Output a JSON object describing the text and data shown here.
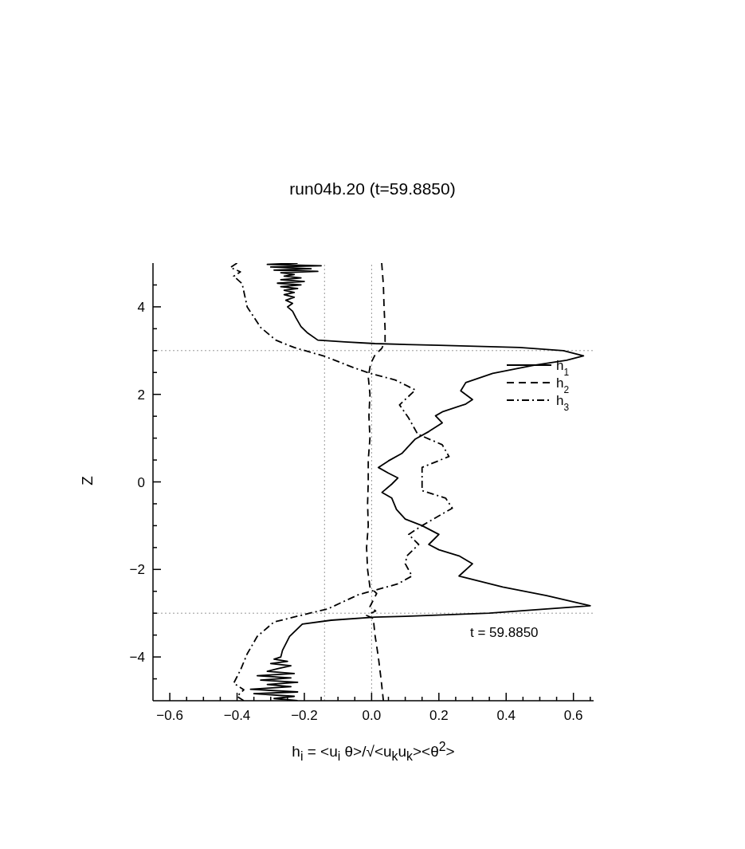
{
  "chart_data": {
    "type": "line",
    "title": "run04b.20 (t=59.8850)",
    "xlabel": "h$_{i}$ = <u$_{i}$ θ>/√<u$_{k}$u$_{k}$><θ$^{2}$>",
    "ylabel": "Z",
    "annotations": [
      "t = 59.8850"
    ],
    "xlim": [
      -0.65,
      0.66
    ],
    "ylim": [
      -5,
      5
    ],
    "xticks": [
      {
        "value": -0.6,
        "label": "−0.6"
      },
      {
        "value": -0.55,
        "label": null
      },
      {
        "value": -0.5,
        "label": null
      },
      {
        "value": -0.45,
        "label": null
      },
      {
        "value": -0.4,
        "label": "−0.4"
      },
      {
        "value": -0.35,
        "label": null
      },
      {
        "value": -0.3,
        "label": null
      },
      {
        "value": -0.25,
        "label": null
      },
      {
        "value": -0.2,
        "label": "−0.2"
      },
      {
        "value": -0.15,
        "label": null
      },
      {
        "value": -0.1,
        "label": null
      },
      {
        "value": -0.05,
        "label": null
      },
      {
        "value": 0,
        "label": "0.0"
      },
      {
        "value": 0.05,
        "label": null
      },
      {
        "value": 0.1,
        "label": null
      },
      {
        "value": 0.15,
        "label": null
      },
      0.2,
      {
        "value": 0.25,
        "label": null
      },
      {
        "value": 0.3,
        "label": null
      },
      {
        "value": 0.35,
        "label": null
      },
      0.4,
      {
        "value": 0.45,
        "label": null
      },
      {
        "value": 0.5,
        "label": null
      },
      {
        "value": 0.55,
        "label": null
      },
      0.6,
      {
        "value": 0.65,
        "label": null
      }
    ],
    "yticks": [
      {
        "value": -4.5,
        "label": null
      },
      {
        "value": -4,
        "label": "−4"
      },
      {
        "value": -3.5,
        "label": null
      },
      {
        "value": -3,
        "label": null
      },
      {
        "value": -2.5,
        "label": null
      },
      {
        "value": -2,
        "label": "−2"
      },
      {
        "value": -1.5,
        "label": null
      },
      {
        "value": -1,
        "label": null
      },
      {
        "value": -0.5,
        "label": null
      },
      0,
      {
        "value": 0.5,
        "label": null
      },
      {
        "value": 1,
        "label": null
      },
      {
        "value": 1.5,
        "label": null
      },
      2,
      {
        "value": 2.5,
        "label": null
      },
      {
        "value": 3,
        "label": null
      },
      {
        "value": 3.5,
        "label": null
      },
      4,
      {
        "value": 4.5,
        "label": null
      }
    ],
    "legend": "top right",
    "marker": "none",
    "ref_lines": [
      {
        "axis": "x",
        "value": 0,
        "color": "#999999",
        "line_style": "dotted"
      },
      {
        "axis": "x",
        "value": -0.14,
        "color": "#999999",
        "line_style": "dotted"
      },
      {
        "axis": "y",
        "value": 3,
        "color": "#999999",
        "line_style": "dotted"
      },
      {
        "axis": "y",
        "value": -3,
        "color": "#999999",
        "line_style": "dotted"
      }
    ],
    "series": [
      {
        "name": "h$_{1}$",
        "color": "#000000",
        "line_style": "solid",
        "x": [
          -0.22,
          -0.31,
          -0.15,
          -0.3,
          -0.18,
          -0.29,
          -0.16,
          -0.27,
          -0.23,
          -0.26,
          -0.21,
          -0.27,
          -0.2,
          -0.28,
          -0.21,
          -0.27,
          -0.22,
          -0.26,
          -0.23,
          -0.26,
          -0.23,
          -0.255,
          -0.235,
          -0.25,
          -0.235,
          -0.225,
          -0.21,
          -0.19,
          -0.16,
          -0.08,
          0.01,
          0.2,
          0.44,
          0.57,
          0.63,
          0.58,
          0.48,
          0.36,
          0.28,
          0.265,
          0.3,
          0.28,
          0.21,
          0.19,
          0.21,
          0.17,
          0.13,
          0.09,
          0.05,
          0.02,
          0.05,
          0.078,
          0.06,
          0.031,
          0.06,
          0.074,
          0.1,
          0.15,
          0.2,
          0.17,
          0.2,
          0.26,
          0.3,
          0.26,
          0.39,
          0.52,
          0.65,
          0.35,
          0.1,
          0.01,
          -0.12,
          -0.206,
          -0.244,
          -0.265,
          -0.27,
          -0.29,
          -0.25,
          -0.3,
          -0.24,
          -0.28,
          -0.31,
          -0.23,
          -0.34,
          -0.24,
          -0.33,
          -0.22,
          -0.31,
          -0.24,
          -0.36,
          -0.22,
          -0.35,
          -0.23,
          -0.29,
          -0.22
        ],
        "values": [
          5.0,
          4.97,
          4.94,
          4.91,
          4.87,
          4.84,
          4.81,
          4.78,
          4.74,
          4.7,
          4.66,
          4.62,
          4.58,
          4.54,
          4.5,
          4.46,
          4.42,
          4.38,
          4.33,
          4.28,
          4.22,
          4.15,
          4.08,
          4.0,
          3.9,
          3.75,
          3.55,
          3.4,
          3.24,
          3.2,
          3.16,
          3.12,
          3.07,
          3.0,
          2.88,
          2.78,
          2.66,
          2.48,
          2.27,
          2.08,
          1.88,
          1.78,
          1.6,
          1.51,
          1.35,
          1.15,
          0.98,
          0.65,
          0.48,
          0.33,
          0.2,
          0.09,
          -0.05,
          -0.24,
          -0.37,
          -0.63,
          -0.85,
          -1.0,
          -1.2,
          -1.43,
          -1.55,
          -1.69,
          -1.87,
          -2.15,
          -2.4,
          -2.6,
          -2.83,
          -3.0,
          -3.07,
          -3.09,
          -3.16,
          -3.25,
          -3.53,
          -3.85,
          -4.0,
          -4.05,
          -4.1,
          -4.15,
          -4.2,
          -4.27,
          -4.33,
          -4.38,
          -4.43,
          -4.48,
          -4.53,
          -4.58,
          -4.63,
          -4.68,
          -4.74,
          -4.8,
          -4.84,
          -4.9,
          -4.95,
          -5.0
        ]
      },
      {
        "name": "h$_{2}$",
        "color": "#000000",
        "line_style": "dashed",
        "x": [
          0.03,
          0.035,
          0.037,
          0.04,
          0.04,
          0.03,
          0.01,
          -0.003,
          -0.01,
          -0.005,
          -0.008,
          -0.005,
          -0.01,
          -0.01,
          -0.012,
          -0.01,
          -0.015,
          -0.012,
          -0.005,
          0.015,
          -0.005,
          0.012,
          -0.015,
          0.005,
          0.01,
          0.02,
          0.028,
          0.035
        ],
        "values": [
          5,
          4.5,
          4.0,
          3.5,
          3.2,
          3.05,
          2.9,
          2.7,
          2.4,
          2.0,
          1.5,
          1.0,
          0.5,
          0,
          -0.5,
          -1.0,
          -1.5,
          -2.0,
          -2.4,
          -2.55,
          -2.85,
          -2.95,
          -3.05,
          -3.12,
          -3.5,
          -4.0,
          -4.5,
          -5
        ]
      },
      {
        "name": "h$_{3}$",
        "color": "#000000",
        "line_style": "dashdot",
        "x": [
          -0.4,
          -0.42,
          -0.39,
          -0.41,
          -0.385,
          -0.37,
          -0.33,
          -0.285,
          -0.23,
          -0.14,
          -0.05,
          0.0,
          0.07,
          0.13,
          0.083,
          0.11,
          0.137,
          0.21,
          0.23,
          0.15,
          0.15,
          0.22,
          0.24,
          0.15,
          0.11,
          0.14,
          0.105,
          0.1,
          0.12,
          0.078,
          -0.04,
          -0.13,
          -0.2,
          -0.29,
          -0.34,
          -0.37,
          -0.39,
          -0.41,
          -0.38,
          -0.4,
          -0.38
        ],
        "values": [
          5.0,
          4.9,
          4.8,
          4.7,
          4.53,
          4.0,
          3.53,
          3.24,
          3.07,
          2.87,
          2.6,
          2.47,
          2.33,
          2.1,
          1.76,
          1.46,
          1.09,
          0.85,
          0.58,
          0.33,
          -0.2,
          -0.37,
          -0.6,
          -1.0,
          -1.2,
          -1.43,
          -1.69,
          -1.87,
          -2.15,
          -2.33,
          -2.58,
          -2.9,
          -3.03,
          -3.2,
          -3.53,
          -3.93,
          -4.3,
          -4.6,
          -4.75,
          -4.9,
          -5.0
        ]
      }
    ]
  }
}
